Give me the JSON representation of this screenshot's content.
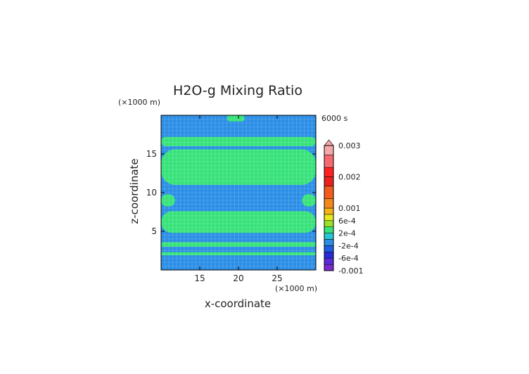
{
  "chart_data": {
    "type": "heatmap",
    "title": "H2O-g Mixing Ratio",
    "time_label": "6000 s",
    "xlabel": "x-coordinate",
    "ylabel": "z-coordinate",
    "x_unit": "(×1000 m)",
    "y_unit": "(×1000 m)",
    "xlim": [
      10,
      30
    ],
    "ylim": [
      0,
      20
    ],
    "x_ticks": [
      15,
      20,
      25
    ],
    "y_ticks": [
      5,
      10,
      15
    ],
    "grid": true,
    "colorbar": {
      "position": "right",
      "min": -0.001,
      "max": 0.003,
      "tick_labels": [
        "0.003",
        "0.002",
        "0.001",
        "6e-4",
        "2e-4",
        "-2e-4",
        "-6e-4",
        "-0.001"
      ],
      "tick_values": [
        0.003,
        0.002,
        0.001,
        0.0006,
        0.0002,
        -0.0002,
        -0.0006,
        -0.001
      ],
      "levels": [
        {
          "lo": -0.001,
          "hi": -0.0008,
          "color": "#7a2bd0"
        },
        {
          "lo": -0.0008,
          "hi": -0.0006,
          "color": "#5a2bd8"
        },
        {
          "lo": -0.0006,
          "hi": -0.0004,
          "color": "#2a2ad8"
        },
        {
          "lo": -0.0004,
          "hi": -0.0002,
          "color": "#1d5fe0"
        },
        {
          "lo": -0.0002,
          "hi": 0.0,
          "color": "#2b8ee6"
        },
        {
          "lo": 0.0,
          "hi": 0.0002,
          "color": "#27c6d6"
        },
        {
          "lo": 0.0002,
          "hi": 0.0004,
          "color": "#37e27a"
        },
        {
          "lo": 0.0004,
          "hi": 0.0006,
          "color": "#9be12a"
        },
        {
          "lo": 0.0006,
          "hi": 0.0008,
          "color": "#e8e81e"
        },
        {
          "lo": 0.0008,
          "hi": 0.001,
          "color": "#f6b318"
        },
        {
          "lo": 0.001,
          "hi": 0.0013,
          "color": "#f4891b"
        },
        {
          "lo": 0.0013,
          "hi": 0.0017,
          "color": "#f25d1c"
        },
        {
          "lo": 0.0017,
          "hi": 0.002,
          "color": "#e9231b"
        },
        {
          "lo": 0.002,
          "hi": 0.0023,
          "color": "#ff2222"
        },
        {
          "lo": 0.0023,
          "hi": 0.0027,
          "color": "#f56a70"
        },
        {
          "lo": 0.0027,
          "hi": 0.003,
          "color": "#f6a9aa"
        }
      ]
    },
    "field": {
      "background_value": -0.0001,
      "regions": [
        {
          "kind": "band",
          "z0": 19.2,
          "z1": 20.0,
          "x0": 18.5,
          "x1": 20.8,
          "value": 0.0003
        },
        {
          "kind": "band",
          "z0": 16.0,
          "z1": 17.2,
          "x0": 10.0,
          "x1": 30.0,
          "value": 0.0003
        },
        {
          "kind": "band",
          "z0": 11.0,
          "z1": 15.6,
          "x0": 10.0,
          "x1": 30.0,
          "value": 0.0003
        },
        {
          "kind": "band",
          "z0": 8.2,
          "z1": 9.8,
          "x0": 10.0,
          "x1": 11.8,
          "value": 0.0003
        },
        {
          "kind": "band",
          "z0": 8.2,
          "z1": 9.8,
          "x0": 28.2,
          "x1": 30.0,
          "value": 0.0003
        },
        {
          "kind": "band",
          "z0": 4.8,
          "z1": 7.6,
          "x0": 10.0,
          "x1": 30.0,
          "value": 0.0003
        },
        {
          "kind": "band",
          "z0": 3.0,
          "z1": 3.6,
          "x0": 10.0,
          "x1": 30.0,
          "value": 0.0003
        },
        {
          "kind": "band",
          "z0": 1.9,
          "z1": 2.3,
          "x0": 10.0,
          "x1": 30.0,
          "value": 0.0003
        }
      ]
    }
  }
}
